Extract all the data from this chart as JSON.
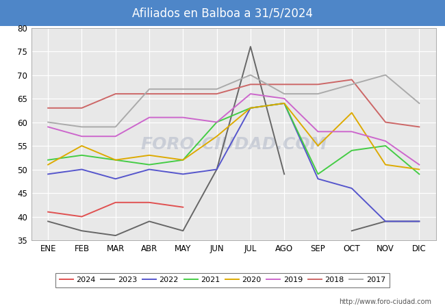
{
  "title": "Afiliados en Balboa a 31/5/2024",
  "title_bg_color": "#4e86c8",
  "title_text_color": "#ffffff",
  "ylim": [
    35,
    80
  ],
  "yticks": [
    35,
    40,
    45,
    50,
    55,
    60,
    65,
    70,
    75,
    80
  ],
  "months": [
    "ENE",
    "FEB",
    "MAR",
    "ABR",
    "MAY",
    "JUN",
    "JUL",
    "AGO",
    "SEP",
    "OCT",
    "NOV",
    "DIC"
  ],
  "watermark": "FORO-CIUDAD.COM",
  "url": "http://www.foro-ciudad.com",
  "plot_bg_color": "#e8e8e8",
  "series": {
    "2024": {
      "color": "#e05050",
      "data": [
        41,
        40,
        43,
        43,
        42,
        null,
        null,
        null,
        null,
        null,
        null,
        null
      ]
    },
    "2023": {
      "color": "#666666",
      "data": [
        39,
        37,
        36,
        39,
        37,
        50,
        76,
        49,
        null,
        37,
        39,
        39
      ]
    },
    "2022": {
      "color": "#5555cc",
      "data": [
        49,
        50,
        48,
        50,
        49,
        50,
        63,
        64,
        48,
        46,
        39,
        39
      ]
    },
    "2021": {
      "color": "#44cc44",
      "data": [
        52,
        53,
        52,
        51,
        52,
        60,
        63,
        64,
        49,
        54,
        55,
        49
      ]
    },
    "2020": {
      "color": "#ddaa00",
      "data": [
        51,
        55,
        52,
        53,
        52,
        57,
        63,
        64,
        55,
        62,
        51,
        50
      ]
    },
    "2019": {
      "color": "#cc66cc",
      "data": [
        59,
        57,
        57,
        61,
        61,
        60,
        66,
        65,
        58,
        58,
        56,
        51
      ]
    },
    "2018": {
      "color": "#cc6666",
      "data": [
        63,
        63,
        66,
        66,
        66,
        66,
        68,
        68,
        68,
        69,
        60,
        59
      ]
    },
    "2017": {
      "color": "#aaaaaa",
      "data": [
        60,
        59,
        59,
        67,
        67,
        67,
        70,
        66,
        66,
        68,
        70,
        64
      ]
    }
  },
  "year_order": [
    "2024",
    "2023",
    "2022",
    "2021",
    "2020",
    "2019",
    "2018",
    "2017"
  ]
}
